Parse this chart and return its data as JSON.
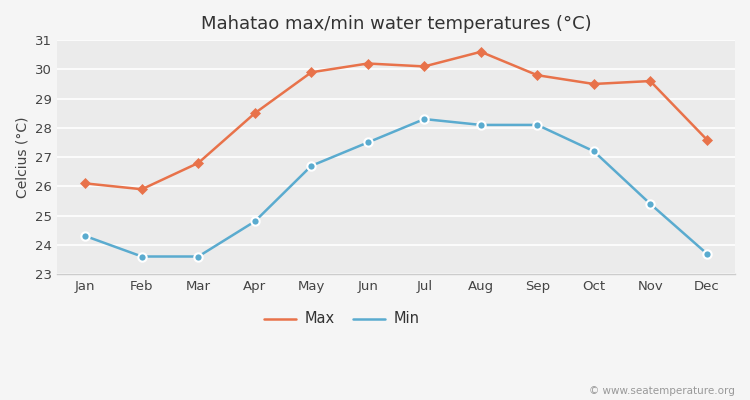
{
  "title": "Mahatao max/min water temperatures (°C)",
  "ylabel": "Celcius (°C)",
  "months": [
    "Jan",
    "Feb",
    "Mar",
    "Apr",
    "May",
    "Jun",
    "Jul",
    "Aug",
    "Sep",
    "Oct",
    "Nov",
    "Dec"
  ],
  "max_temps": [
    26.1,
    25.9,
    26.8,
    28.5,
    29.9,
    30.2,
    30.1,
    30.6,
    29.8,
    29.5,
    29.6,
    27.6
  ],
  "min_temps": [
    24.3,
    23.6,
    23.6,
    24.8,
    26.7,
    27.5,
    28.3,
    28.1,
    28.1,
    27.2,
    25.4,
    23.7
  ],
  "max_color": "#e8724a",
  "min_color": "#5aabcf",
  "fig_bg_color": "#f5f5f5",
  "plot_bg_color": "#ebebeb",
  "grid_color": "#ffffff",
  "spine_color": "#cccccc",
  "ylim": [
    23,
    31
  ],
  "yticks": [
    23,
    24,
    25,
    26,
    27,
    28,
    29,
    30,
    31
  ],
  "legend_labels": [
    "Max",
    "Min"
  ],
  "watermark": "© www.seatemperature.org",
  "title_fontsize": 13,
  "axis_label_fontsize": 10,
  "tick_fontsize": 9.5,
  "legend_fontsize": 10.5
}
